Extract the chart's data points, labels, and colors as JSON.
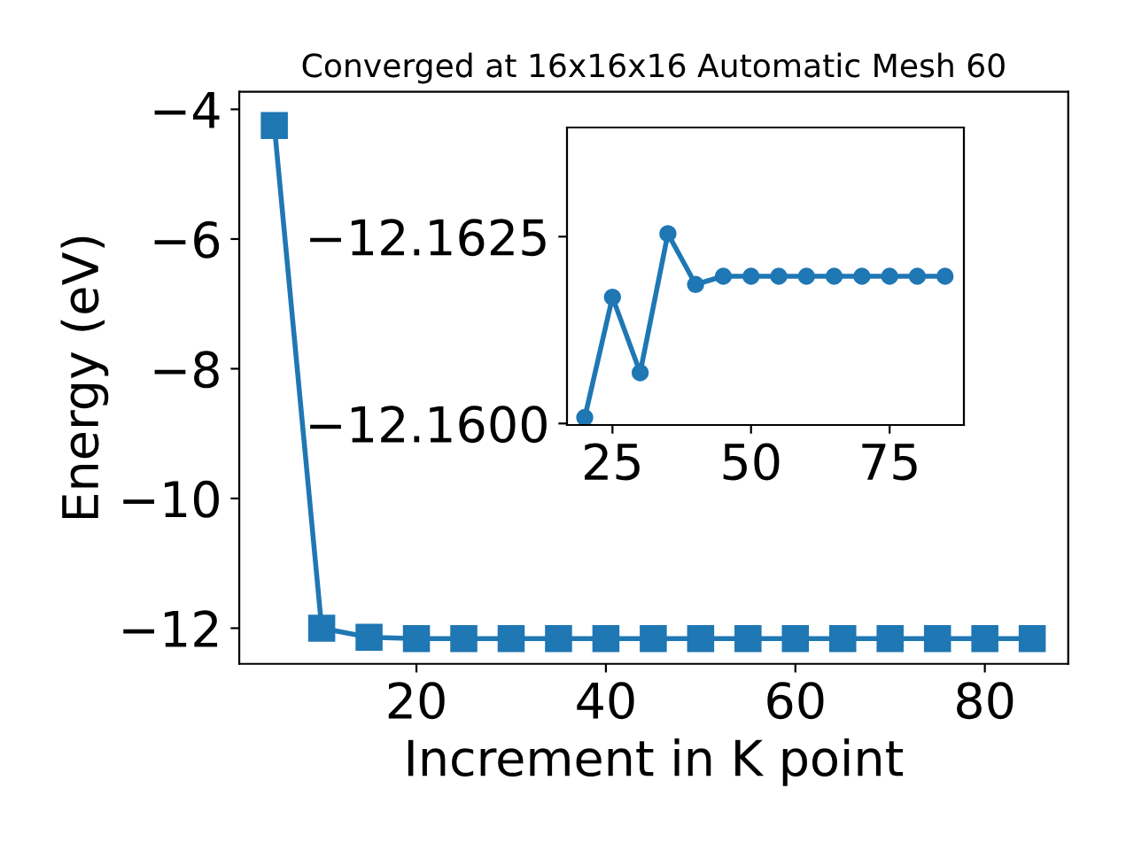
{
  "chart_data": [
    {
      "type": "line",
      "title": "Converged at 16x16x16 Automatic Mesh 60",
      "xlabel": "Increment in K point",
      "ylabel": "Energy (eV)",
      "x": [
        5,
        10,
        15,
        20,
        25,
        30,
        35,
        40,
        45,
        50,
        55,
        60,
        65,
        70,
        75,
        80,
        85
      ],
      "series": [
        {
          "color": "#1f77b4",
          "values": [
            -4.25,
            -12.0,
            -12.14,
            -12.16,
            -12.16,
            -12.16,
            -12.16,
            -12.16,
            -12.16,
            -12.16,
            -12.16,
            -12.16,
            -12.16,
            -12.16,
            -12.16,
            -12.16,
            -12.16
          ]
        }
      ],
      "xlim": [
        1.3,
        88.8
      ],
      "ylim": [
        -12.55,
        -3.73
      ],
      "xticks": [
        20,
        40,
        60,
        80
      ],
      "yticks": [
        -12,
        -10,
        -8,
        -6,
        -4
      ],
      "marker": "square",
      "line_style": "solid"
    },
    {
      "type": "line",
      "x": [
        20,
        25,
        30,
        35,
        40,
        45,
        50,
        55,
        60,
        65,
        70,
        75,
        80,
        85
      ],
      "series": [
        {
          "color": "#1f77b4",
          "values": [
            -12.16008,
            -12.16169,
            -12.16068,
            -12.16254,
            -12.16186,
            -12.16197,
            -12.16197,
            -12.16197,
            -12.16197,
            -12.16197,
            -12.16197,
            -12.16197,
            -12.16197,
            -12.16197
          ]
        }
      ],
      "xlim": [
        16.8,
        88.4
      ],
      "ylim": [
        -12.15998,
        -12.16396
      ],
      "xticks": [
        25,
        50,
        75
      ],
      "yticks": [
        -12.1625,
        {
          "value": -12.16,
          "label": "−12.1600"
        }
      ],
      "marker": "circle",
      "line_style": "solid"
    }
  ]
}
